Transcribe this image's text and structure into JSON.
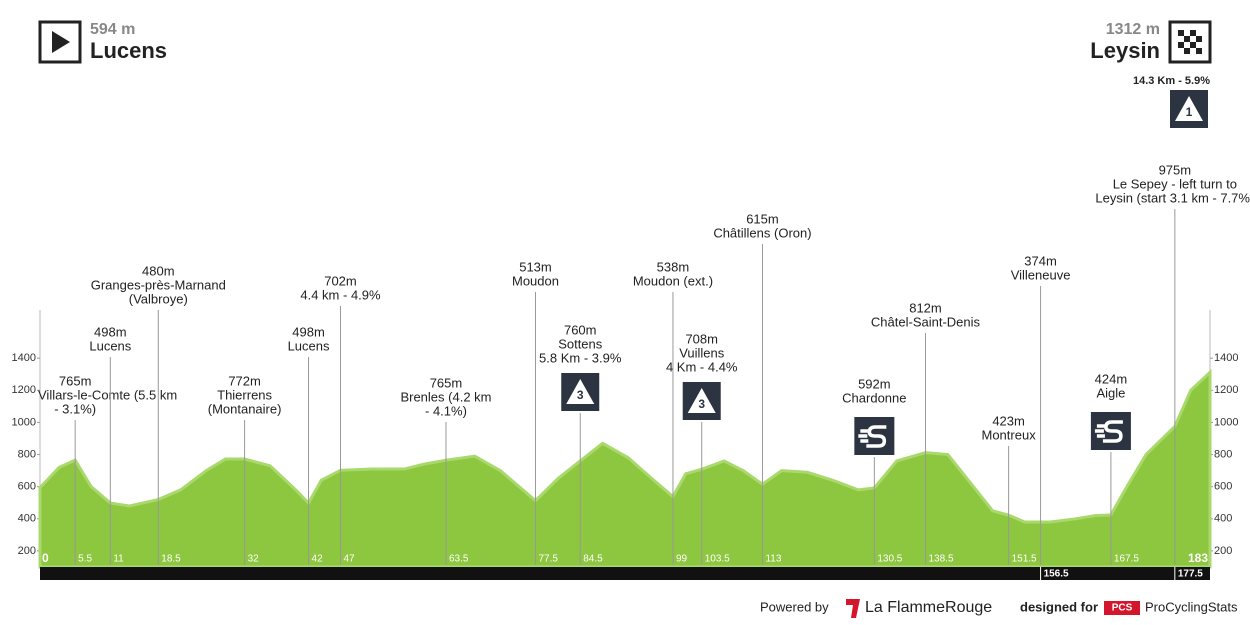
{
  "header": {
    "start": {
      "elevation": "594 m",
      "name": "Lucens"
    },
    "finish": {
      "elevation": "1312 m",
      "name": "Leysin",
      "climb": "14.3 Km - 5.9%",
      "category": "1"
    }
  },
  "chart_data": {
    "type": "area",
    "color": "#8dc63f",
    "xlim": [
      0,
      183
    ],
    "ylim": [
      100,
      1700
    ],
    "yticks": [
      200,
      400,
      600,
      800,
      1000,
      1200,
      1400
    ],
    "x": [
      0,
      3,
      5.5,
      8,
      11,
      14,
      18.5,
      22,
      26,
      29,
      32,
      36,
      40,
      42,
      44,
      47,
      52,
      57,
      60,
      63.5,
      68,
      72,
      77.5,
      81,
      84.5,
      88,
      92,
      96,
      99,
      101,
      103.5,
      107,
      110,
      113,
      116,
      120,
      124,
      128,
      130.5,
      134,
      138.5,
      142,
      146,
      149,
      151.5,
      154,
      158,
      162,
      165,
      167.5,
      170,
      173,
      177.5,
      180,
      183
    ],
    "values": [
      594,
      720,
      765,
      600,
      498,
      480,
      520,
      580,
      700,
      772,
      772,
      730,
      580,
      498,
      640,
      702,
      710,
      710,
      740,
      765,
      790,
      700,
      513,
      650,
      760,
      870,
      780,
      640,
      538,
      680,
      708,
      760,
      700,
      615,
      700,
      690,
      640,
      580,
      592,
      760,
      812,
      800,
      600,
      450,
      423,
      380,
      380,
      400,
      420,
      424,
      600,
      800,
      975,
      1200,
      1312
    ],
    "xticks": [
      0,
      5.5,
      11,
      18.5,
      32,
      42,
      47,
      63.5,
      77.5,
      84.5,
      99,
      103.5,
      113,
      130.5,
      138.5,
      151.5,
      167.5,
      183
    ],
    "bar_ticks": [
      156.5,
      177.5
    ],
    "annotations": [
      {
        "km": 5.5,
        "elevation": "765m",
        "name": [
          "Villars-le-Comte (5.5 km",
          "- 3.1%)"
        ]
      },
      {
        "km": 11,
        "elevation": "498m",
        "name": [
          "Lucens"
        ]
      },
      {
        "km": 18.5,
        "elevation": "480m",
        "name": [
          "Granges-près-Marnand",
          "(Valbroye)"
        ]
      },
      {
        "km": 32,
        "elevation": "772m",
        "name": [
          "Thierrens",
          "(Montanaire)"
        ]
      },
      {
        "km": 42,
        "elevation": "498m",
        "name": [
          "Lucens"
        ]
      },
      {
        "km": 47,
        "elevation": "702m",
        "name": [
          "4.4 km - 4.9%"
        ]
      },
      {
        "km": 63.5,
        "elevation": "765m",
        "name": [
          "Brenles (4.2 km",
          "- 4.1%)"
        ]
      },
      {
        "km": 77.5,
        "elevation": "513m",
        "name": [
          "Moudon"
        ]
      },
      {
        "km": 84.5,
        "elevation": "760m",
        "name": [
          "Sottens",
          "5.8 Km - 3.9%"
        ],
        "category": "3"
      },
      {
        "km": 99,
        "elevation": "538m",
        "name": [
          "Moudon (ext.)"
        ]
      },
      {
        "km": 103.5,
        "elevation": "708m",
        "name": [
          "Vuillens",
          "4 Km - 4.4%"
        ],
        "category": "3"
      },
      {
        "km": 113,
        "elevation": "615m",
        "name": [
          "Châtillens (Oron)"
        ]
      },
      {
        "km": 130.5,
        "elevation": "592m",
        "name": [
          "Chardonne"
        ],
        "sprint": true
      },
      {
        "km": 138.5,
        "elevation": "812m",
        "name": [
          "Châtel-Saint-Denis"
        ]
      },
      {
        "km": 151.5,
        "elevation": "423m",
        "name": [
          "Montreux"
        ]
      },
      {
        "km": 156.5,
        "elevation": "374m",
        "name": [
          "Villeneuve"
        ]
      },
      {
        "km": 167.5,
        "elevation": "424m",
        "name": [
          "Aigle"
        ],
        "sprint": true
      },
      {
        "km": 177.5,
        "elevation": "975m",
        "name": [
          "Le Sepey - left turn to",
          "Leysin (start 3.1 km - 7.7%)"
        ]
      }
    ]
  },
  "footer": {
    "powered": "Powered by",
    "brand": "La FlammeRouge",
    "designed": "designed for",
    "pcs": "PCS",
    "site": "ProCyclingStats"
  }
}
